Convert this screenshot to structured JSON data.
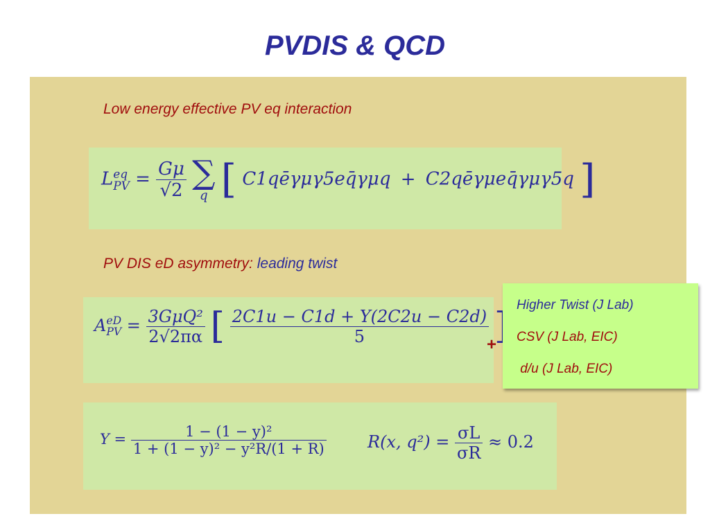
{
  "title": "PVDIS & QCD",
  "captions": {
    "effective": "Low energy effective PV eq interaction",
    "asymmetry_prefix": "PV DIS eD asymmetry: ",
    "asymmetry_suffix": "leading twist"
  },
  "plus_sign": "+",
  "side_box": {
    "items": [
      "Higher Twist (J Lab)",
      "CSV (J Lab, EIC)",
      " d/u (J Lab, EIC)"
    ]
  },
  "equations": {
    "lagrangian": {
      "lhs_symbol": "L",
      "lhs_sup": "eq",
      "lhs_sub": "PV",
      "equals": "=",
      "frac_num": "Gμ",
      "frac_den": "√2",
      "sum_symbol": "∑",
      "sum_index": "q",
      "open_bracket": "[",
      "term1": "C1qēγμγ5eq̄γμq",
      "plus": "+",
      "term2": "C2qēγμeq̄γμγ5q",
      "close_bracket": "]"
    },
    "asymmetry": {
      "lhs_symbol": "A",
      "lhs_sup": "eD",
      "lhs_sub": "PV",
      "equals": "=",
      "frac_num": "3GμQ²",
      "frac_den": "2√2πα",
      "open_bracket": "[",
      "inner_num": "2C1u − C1d + Y(2C2u − C2d)",
      "inner_den": "5",
      "close_bracket": "]"
    },
    "kinematics": {
      "lhs": "Y =",
      "frac_num": "1 − (1 − y)²",
      "frac_den": "1 + (1 − y)² − y²R/(1 + R)",
      "ratio_lhs": "R(x, q²) =",
      "ratio_num": "σL",
      "ratio_den": "σR",
      "ratio_rhs": "≈ 0.2"
    }
  },
  "colors": {
    "title": "#2b2b9a",
    "panel": "#e3d596",
    "equation_box": "#cfe8a6",
    "side_box": "#c6ff8a",
    "red_text": "#a00d0d"
  }
}
